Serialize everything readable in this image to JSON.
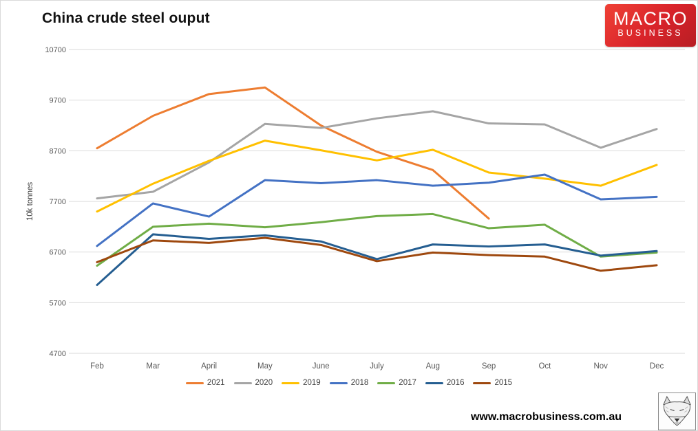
{
  "header": {
    "title": "China crude steel ouput",
    "logo": {
      "line1": "MACRO",
      "line2": "BUSINESS",
      "bg_color": "#d8232a"
    }
  },
  "chart_data": {
    "type": "line",
    "title": "China crude steel ouput",
    "ylabel": "10k tonnes",
    "xlabel": "",
    "ylim": [
      4700,
      10700
    ],
    "ytick_step": 1000,
    "grid": true,
    "legend_position": "bottom",
    "categories": [
      "Feb",
      "Mar",
      "April",
      "May",
      "June",
      "July",
      "Aug",
      "Sep",
      "Oct",
      "Nov",
      "Dec"
    ],
    "series": [
      {
        "name": "2021",
        "color": "#ED7D31",
        "values": [
          8750,
          9390,
          9820,
          9950,
          9200,
          8680,
          8320,
          7360
        ]
      },
      {
        "name": "2020",
        "color": "#A5A5A5",
        "values": [
          7760,
          7890,
          8470,
          9230,
          9150,
          9340,
          9480,
          9240,
          9220,
          8760,
          9130
        ]
      },
      {
        "name": "2019",
        "color": "#FFC000",
        "values": [
          7500,
          8050,
          8500,
          8900,
          8710,
          8510,
          8720,
          8270,
          8150,
          8010,
          8420
        ]
      },
      {
        "name": "2018",
        "color": "#4472C4",
        "values": [
          6820,
          7660,
          7400,
          8120,
          8060,
          8120,
          8010,
          8070,
          8230,
          7740,
          7790
        ]
      },
      {
        "name": "2017",
        "color": "#70AD47",
        "values": [
          6430,
          7200,
          7260,
          7190,
          7290,
          7410,
          7450,
          7170,
          7240,
          6610,
          6690
        ]
      },
      {
        "name": "2016",
        "color": "#255E91",
        "values": [
          6050,
          7050,
          6960,
          7030,
          6910,
          6560,
          6850,
          6810,
          6850,
          6630,
          6720
        ]
      },
      {
        "name": "2015",
        "color": "#9E480E",
        "values": [
          6500,
          6930,
          6880,
          6980,
          6840,
          6520,
          6690,
          6640,
          6610,
          6330,
          6440
        ]
      }
    ]
  },
  "footer": {
    "url": "www.macrobusiness.com.au",
    "fox_logo": "fox-sketch-icon"
  }
}
